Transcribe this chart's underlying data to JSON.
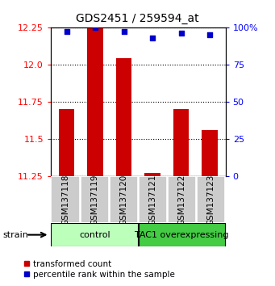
{
  "title": "GDS2451 / 259594_at",
  "samples": [
    "GSM137118",
    "GSM137119",
    "GSM137120",
    "GSM137121",
    "GSM137122",
    "GSM137123"
  ],
  "bar_values": [
    11.7,
    12.25,
    12.04,
    11.27,
    11.7,
    11.56
  ],
  "percentile_values": [
    97,
    100,
    97,
    93,
    96,
    95
  ],
  "bar_bottom": 11.25,
  "ylim_left": [
    11.25,
    12.25
  ],
  "ylim_right": [
    0,
    100
  ],
  "yticks_left": [
    11.25,
    11.5,
    11.75,
    12.0,
    12.25
  ],
  "yticks_right": [
    0,
    25,
    50,
    75,
    100
  ],
  "bar_color": "#cc0000",
  "dot_color": "#0000cc",
  "groups": [
    {
      "label": "control",
      "indices": [
        0,
        1,
        2
      ],
      "color": "#bbffbb"
    },
    {
      "label": "TAC1 overexpressing",
      "indices": [
        3,
        4,
        5
      ],
      "color": "#44cc44"
    }
  ],
  "strain_label": "strain",
  "legend_bar_label": "transformed count",
  "legend_dot_label": "percentile rank within the sample",
  "bar_width": 0.55,
  "bg_color": "#ffffff",
  "label_area_color": "#cccccc",
  "title_fontsize": 10,
  "tick_fontsize": 8,
  "sample_fontsize": 7.5
}
